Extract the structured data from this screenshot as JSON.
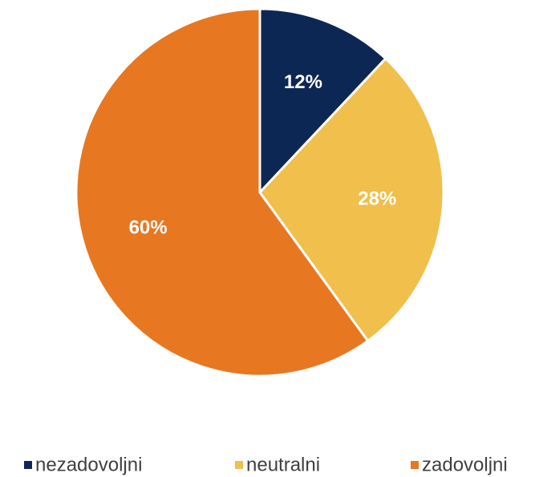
{
  "chart_data": {
    "type": "pie",
    "categories": [
      "nezadovoljni",
      "neutralni",
      "zadovoljni"
    ],
    "values": [
      12,
      28,
      60
    ],
    "value_labels": [
      "12%",
      "28%",
      "60%"
    ],
    "colors": [
      "#0d2754",
      "#f0bf4c",
      "#e87722"
    ],
    "legend": "bottom"
  }
}
